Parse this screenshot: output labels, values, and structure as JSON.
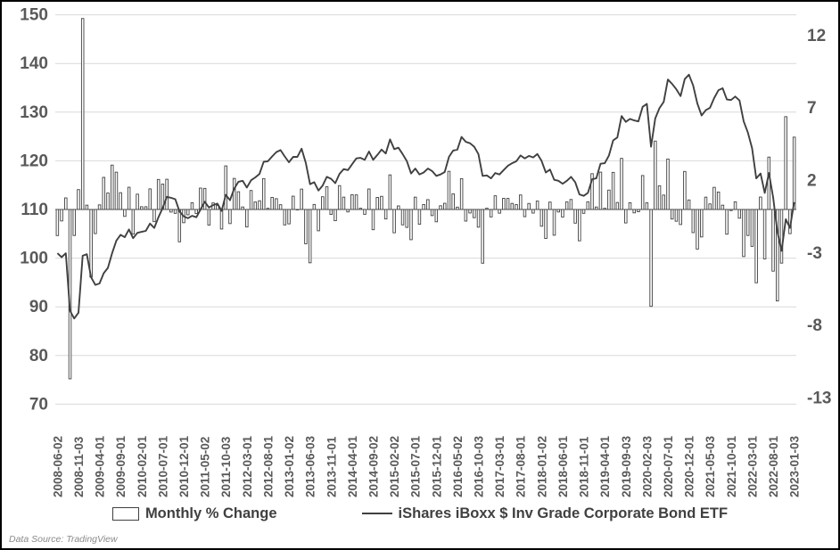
{
  "chart_data": {
    "type": "combo_bar_line",
    "title": "",
    "x_start": "2008-06",
    "x_end": "2023-01",
    "n_points": 176,
    "x_tick_every_n_months": 5,
    "x_tick_labels": [
      "2008-06-02",
      "2008-11-03",
      "2009-04-01",
      "2009-09-01",
      "2010-02-01",
      "2010-07-01",
      "2010-12-01",
      "2011-05-02",
      "2011-10-03",
      "2012-03-01",
      "2012-08-01",
      "2013-01-02",
      "2013-06-03",
      "2013-11-01",
      "2014-04-01",
      "2014-09-02",
      "2015-02-02",
      "2015-07-01",
      "2015-12-01",
      "2016-05-02",
      "2016-10-03",
      "2017-03-01",
      "2017-08-01",
      "2018-01-02",
      "2018-06-01",
      "2018-11-01",
      "2019-04-01",
      "2019-09-03",
      "2020-02-03",
      "2020-07-01",
      "2020-12-01",
      "2021-05-03",
      "2021-10-01",
      "2022-03-01",
      "2022-08-01",
      "2023-01-03"
    ],
    "left_axis": {
      "ticks": [
        150,
        140,
        130,
        120,
        110,
        100,
        90,
        80,
        70
      ],
      "min": 70,
      "max": 150,
      "applies_to": "line"
    },
    "right_axis": {
      "ticks": [
        12,
        7,
        2,
        -3,
        -8,
        -13
      ],
      "unit": "%",
      "zero_aligned_with_left": 110,
      "applies_to": "bar"
    },
    "grid": "horizontal-only",
    "legend_position": "bottom-center",
    "series": [
      {
        "name": "Monthly % Change",
        "type": "bar",
        "axis": "right",
        "derivation": "month-over-month percent change of the line series values; first bar value given explicitly",
        "first_value_pct": -1.8
      },
      {
        "name": "iShares iBoxx $ Inv Grade Corporate Bond ETF",
        "type": "line",
        "axis": "left",
        "values": [
          101.0,
          100.2,
          101.0,
          89.2,
          87.6,
          88.8,
          100.5,
          100.8,
          96.1,
          94.5,
          94.8,
          96.9,
          98.0,
          101.0,
          103.6,
          104.8,
          104.3,
          105.9,
          104.1,
          105.2,
          105.4,
          105.6,
          107.1,
          106.2,
          108.4,
          110.3,
          112.6,
          112.4,
          112.1,
          109.6,
          108.6,
          108.2,
          108.7,
          108.4,
          110.0,
          111.6,
          110.4,
          110.9,
          111.2,
          109.7,
          113.0,
          111.9,
          114.3,
          115.7,
          115.9,
          114.5,
          116.0,
          116.6,
          117.3,
          119.8,
          119.9,
          120.9,
          121.8,
          122.2,
          120.9,
          119.7,
          120.8,
          120.8,
          122.5,
          119.6,
          115.2,
          115.6,
          113.9,
          114.9,
          116.7,
          116.3,
          115.4,
          117.3,
          118.3,
          118.1,
          119.3,
          120.5,
          120.6,
          120.2,
          121.9,
          120.2,
          121.2,
          122.3,
          121.5,
          124.4,
          122.4,
          122.7,
          121.4,
          119.9,
          117.4,
          118.4,
          117.2,
          117.6,
          118.4,
          117.9,
          116.9,
          117.2,
          117.7,
          120.8,
          122.1,
          122.3,
          124.9,
          123.9,
          123.6,
          122.9,
          121.4,
          116.9,
          117.0,
          116.4,
          117.5,
          117.2,
          118.1,
          119.0,
          119.5,
          119.9,
          121.1,
          120.5,
          121.0,
          120.7,
          121.4,
          120.0,
          117.6,
          118.2,
          116.1,
          115.9,
          115.3,
          115.9,
          116.7,
          115.6,
          113.1,
          112.8,
          113.4,
          116.2,
          116.4,
          119.4,
          119.5,
          121.1,
          124.2,
          124.8,
          129.2,
          128.0,
          128.6,
          128.3,
          128.1,
          131.1,
          131.7,
          122.9,
          128.7,
          130.8,
          132.1,
          136.7,
          135.8,
          134.7,
          133.3,
          136.8,
          137.7,
          135.5,
          131.8,
          129.3,
          130.4,
          130.9,
          132.9,
          134.5,
          134.9,
          132.6,
          132.5,
          133.2,
          132.4,
          128.1,
          125.8,
          122.6,
          116.4,
          117.4,
          113.4,
          117.5,
          112.5,
          105.4,
          101.5,
          108.0,
          106.2,
          111.5
        ]
      }
    ],
    "colors": {
      "bar_fill": "#ffffff",
      "bar_stroke": "#404040",
      "line_stroke": "#404040",
      "gridline": "#d9d9d9",
      "axis_text": "#595959",
      "zero_line": "#595959",
      "frame_border": "#000000"
    }
  },
  "legend": {
    "bar_label": "Monthly % Change",
    "line_label": "iShares iBoxx $ Inv Grade Corporate Bond ETF"
  },
  "footer": {
    "source_note": "Data Source: TradingView"
  }
}
